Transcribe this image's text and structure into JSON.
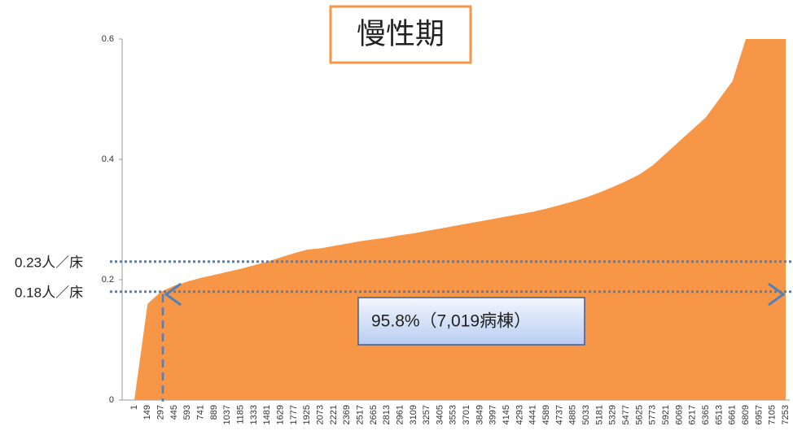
{
  "chart_data": {
    "type": "area",
    "title": "慢性期",
    "annotation": "95.8%（7,019病棟）",
    "color": "#f79646",
    "categories": [
      "1",
      "149",
      "297",
      "445",
      "593",
      "741",
      "889",
      "1037",
      "1185",
      "1333",
      "1481",
      "1629",
      "1777",
      "1925",
      "2073",
      "2221",
      "2369",
      "2517",
      "2665",
      "2813",
      "2961",
      "3109",
      "3257",
      "3405",
      "3553",
      "3701",
      "3849",
      "3997",
      "4145",
      "4293",
      "4441",
      "4589",
      "4737",
      "4885",
      "5033",
      "5181",
      "5329",
      "5477",
      "5625",
      "5773",
      "5921",
      "6069",
      "6217",
      "6365",
      "6513",
      "6661",
      "6809",
      "6957",
      "7105",
      "7253"
    ],
    "values": [
      0,
      0.16,
      0.18,
      0.19,
      0.197,
      0.203,
      0.208,
      0.213,
      0.218,
      0.224,
      0.23,
      0.237,
      0.244,
      0.25,
      0.252,
      0.256,
      0.26,
      0.264,
      0.267,
      0.27,
      0.274,
      0.277,
      0.281,
      0.285,
      0.289,
      0.293,
      0.297,
      0.301,
      0.305,
      0.309,
      0.313,
      0.318,
      0.324,
      0.33,
      0.337,
      0.345,
      0.354,
      0.364,
      0.375,
      0.39,
      0.41,
      0.43,
      0.45,
      0.47,
      0.5,
      0.53,
      0.6,
      0.6,
      0.6,
      0.6
    ],
    "ylim": [
      0,
      0.6
    ],
    "yticks": [
      0,
      0.2,
      0.4,
      0.6
    ],
    "reference_lines": [
      {
        "value": 0.23,
        "label": "0.23人／床"
      },
      {
        "value": 0.18,
        "label": "0.18人／床"
      }
    ]
  }
}
